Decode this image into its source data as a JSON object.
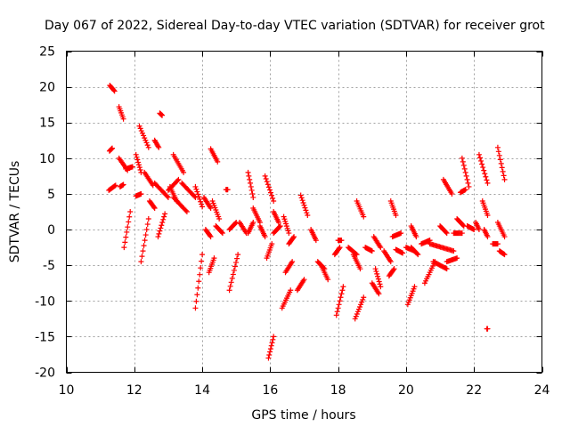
{
  "chart_data": {
    "type": "scatter",
    "title": "Day 067 of 2022, Sidereal Day-to-day VTEC variation (SDTVAR) for receiver grot",
    "xlabel": "GPS time / hours",
    "ylabel": "SDTVAR / TECUs",
    "xlim": [
      10,
      24
    ],
    "ylim": [
      -20,
      25
    ],
    "xticks": [
      10,
      12,
      14,
      16,
      18,
      20,
      22,
      24
    ],
    "yticks": [
      25,
      20,
      15,
      10,
      5,
      0,
      -5,
      -10,
      -15,
      -20
    ],
    "grid": true,
    "marker": "+",
    "color": "#ff0000",
    "series": [
      {
        "name": "SDTVAR",
        "tracks": [
          [
            11.28,
            20.2,
            11.42,
            19.4
          ],
          [
            11.27,
            11.0,
            11.35,
            11.4
          ],
          [
            11.25,
            5.5,
            11.45,
            6.2
          ],
          [
            11.55,
            17.2,
            11.68,
            15.5
          ],
          [
            11.55,
            10.0,
            11.8,
            8.3
          ],
          [
            11.58,
            6.0,
            11.68,
            6.3
          ],
          [
            11.7,
            -2.5,
            11.88,
            2.5
          ],
          [
            11.75,
            8.5,
            11.95,
            8.8
          ],
          [
            12.05,
            4.7,
            12.2,
            5.0
          ],
          [
            12.05,
            10.5,
            12.2,
            8.0
          ],
          [
            12.15,
            14.5,
            12.42,
            11.5
          ],
          [
            12.2,
            -4.5,
            12.42,
            1.5
          ],
          [
            12.3,
            8.0,
            12.55,
            6.2
          ],
          [
            12.45,
            4.0,
            12.6,
            3.0
          ],
          [
            12.6,
            12.5,
            12.72,
            11.5
          ],
          [
            12.6,
            6.5,
            13.0,
            4.5
          ],
          [
            12.7,
            -1.0,
            12.9,
            2.2
          ],
          [
            12.75,
            16.3,
            12.82,
            16.0
          ],
          [
            13.0,
            5.5,
            13.3,
            7.0
          ],
          [
            13.05,
            6.0,
            13.25,
            4.0
          ],
          [
            13.15,
            10.5,
            13.45,
            8.0
          ],
          [
            13.15,
            4.5,
            13.55,
            2.5
          ],
          [
            13.4,
            6.5,
            13.8,
            4.5
          ],
          [
            13.8,
            6.0,
            14.0,
            3.2
          ],
          [
            13.8,
            -11.0,
            14.0,
            -3.5
          ],
          [
            14.05,
            4.5,
            14.25,
            3.0
          ],
          [
            14.1,
            0.0,
            14.25,
            -1.0
          ],
          [
            14.2,
            -6.0,
            14.35,
            -4.0
          ],
          [
            14.25,
            11.3,
            14.45,
            9.5
          ],
          [
            14.3,
            4.0,
            14.5,
            1.5
          ],
          [
            14.4,
            0.5,
            14.6,
            -0.5
          ],
          [
            14.7,
            5.6,
            14.75,
            5.6
          ],
          [
            14.8,
            -8.5,
            15.05,
            -3.5
          ],
          [
            14.8,
            0.0,
            15.0,
            1.0
          ],
          [
            15.1,
            1.0,
            15.3,
            -0.5
          ],
          [
            15.35,
            8.0,
            15.5,
            4.5
          ],
          [
            15.35,
            -0.5,
            15.5,
            1.0
          ],
          [
            15.5,
            3.0,
            15.7,
            1.0
          ],
          [
            15.7,
            0.5,
            15.85,
            -1.0
          ],
          [
            15.85,
            7.5,
            16.1,
            4.0
          ],
          [
            15.9,
            -4.0,
            16.05,
            -2.0
          ],
          [
            15.95,
            -18.0,
            16.1,
            -15.0
          ],
          [
            16.1,
            2.5,
            16.25,
            1.0
          ],
          [
            16.1,
            -0.5,
            16.3,
            0.5
          ],
          [
            16.35,
            -11.0,
            16.6,
            -8.5
          ],
          [
            16.4,
            1.8,
            16.55,
            -0.5
          ],
          [
            16.45,
            -6.0,
            16.65,
            -4.5
          ],
          [
            16.55,
            -2.0,
            16.7,
            -1.0
          ],
          [
            16.8,
            -8.5,
            17.0,
            -7.0
          ],
          [
            16.9,
            4.8,
            17.1,
            2.0
          ],
          [
            17.2,
            0.0,
            17.35,
            -1.5
          ],
          [
            17.4,
            -4.5,
            17.6,
            -5.5
          ],
          [
            17.5,
            -5.0,
            17.7,
            -7.0
          ],
          [
            17.9,
            -3.5,
            18.05,
            -2.5
          ],
          [
            17.95,
            -12.0,
            18.15,
            -8.0
          ],
          [
            18.0,
            -1.5,
            18.1,
            -1.5
          ],
          [
            18.3,
            -2.5,
            18.55,
            -3.5
          ],
          [
            18.45,
            -3.5,
            18.65,
            -5.5
          ],
          [
            18.5,
            -12.5,
            18.75,
            -9.5
          ],
          [
            18.55,
            4.0,
            18.75,
            1.8
          ],
          [
            18.8,
            -2.5,
            19.0,
            -3.0
          ],
          [
            19.0,
            -7.5,
            19.2,
            -9.0
          ],
          [
            19.05,
            -1.0,
            19.25,
            -2.5
          ],
          [
            19.1,
            -5.5,
            19.25,
            -8.0
          ],
          [
            19.35,
            -3.0,
            19.55,
            -4.5
          ],
          [
            19.5,
            -6.5,
            19.65,
            -5.5
          ],
          [
            19.55,
            4.0,
            19.7,
            2.0
          ],
          [
            19.6,
            -1.0,
            19.85,
            -0.5
          ],
          [
            19.7,
            -2.8,
            19.9,
            -3.3
          ],
          [
            20.0,
            -2.5,
            20.25,
            -3.0
          ],
          [
            20.05,
            -10.5,
            20.25,
            -8.0
          ],
          [
            20.15,
            0.5,
            20.3,
            -1.0
          ],
          [
            20.15,
            -2.5,
            20.35,
            -3.5
          ],
          [
            20.45,
            -2.0,
            20.7,
            -1.5
          ],
          [
            20.55,
            -7.5,
            20.85,
            -4.5
          ],
          [
            20.7,
            -2.0,
            21.4,
            -3.0
          ],
          [
            20.8,
            -4.5,
            21.2,
            -5.5
          ],
          [
            21.0,
            0.5,
            21.2,
            -0.5
          ],
          [
            21.1,
            7.0,
            21.35,
            5.0
          ],
          [
            21.2,
            -4.5,
            21.5,
            -4.0
          ],
          [
            21.4,
            -0.5,
            21.65,
            -0.5
          ],
          [
            21.5,
            1.5,
            21.7,
            0.5
          ],
          [
            21.6,
            5.2,
            21.75,
            5.6
          ],
          [
            21.65,
            10.0,
            21.85,
            6.0
          ],
          [
            21.8,
            0.5,
            22.0,
            0.0
          ],
          [
            22.05,
            1.0,
            22.15,
            0.0
          ],
          [
            22.15,
            10.5,
            22.4,
            6.5
          ],
          [
            22.25,
            4.0,
            22.4,
            2.0
          ],
          [
            22.3,
            0.0,
            22.4,
            -1.0
          ],
          [
            22.38,
            -13.9,
            22.4,
            -13.9
          ],
          [
            22.55,
            -2.0,
            22.7,
            -2.0
          ],
          [
            22.7,
            11.5,
            22.9,
            7.0
          ],
          [
            22.7,
            1.0,
            22.9,
            -1.0
          ],
          [
            22.75,
            -3.0,
            22.9,
            -3.5
          ]
        ]
      }
    ]
  }
}
